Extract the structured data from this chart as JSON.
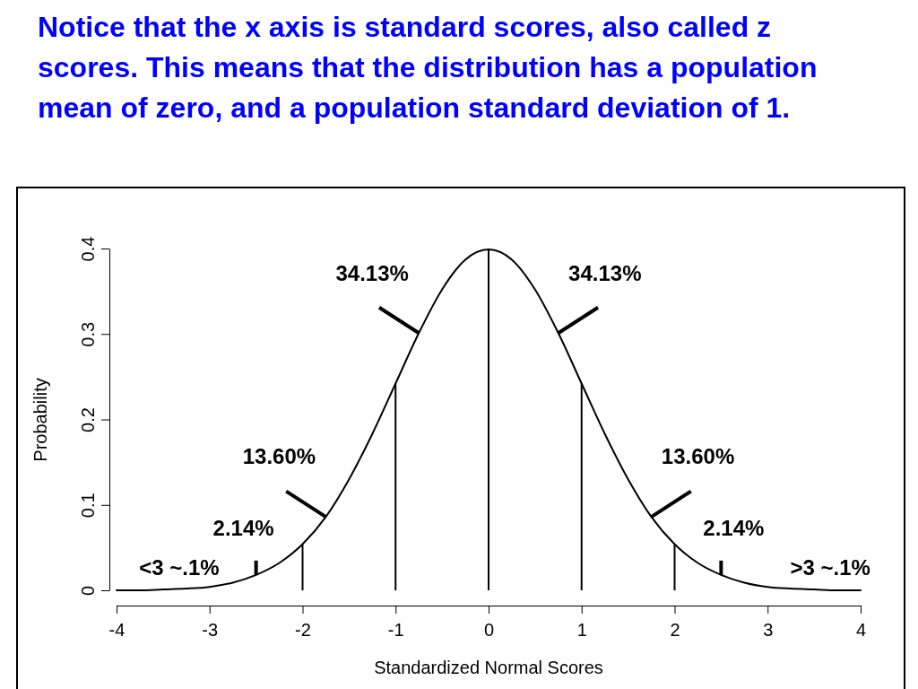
{
  "chart_data": {
    "type": "line",
    "title": "Notice that the x axis is standard scores, also called z scores. This means that the distribution has a population mean of zero, and a population standard deviation of 1.",
    "xlabel": "Standardized Normal Scores",
    "ylabel": "Probability",
    "x": [
      -4,
      -3.75,
      -3.5,
      -3.25,
      -3,
      -2.75,
      -2.5,
      -2.25,
      -2,
      -1.75,
      -1.5,
      -1.25,
      -1,
      -0.75,
      -0.5,
      -0.25,
      0,
      0.25,
      0.5,
      0.75,
      1,
      1.25,
      1.5,
      1.75,
      2,
      2.25,
      2.5,
      2.75,
      3,
      3.25,
      3.5,
      3.75,
      4
    ],
    "series": [
      {
        "color": "#000000",
        "values": [
          0,
          0,
          0.001,
          0.002,
          0.004,
          0.009,
          0.018,
          0.032,
          0.054,
          0.086,
          0.13,
          0.183,
          0.242,
          0.301,
          0.352,
          0.387,
          0.399,
          0.387,
          0.352,
          0.301,
          0.242,
          0.183,
          0.13,
          0.086,
          0.054,
          0.032,
          0.018,
          0.009,
          0.004,
          0.002,
          0.001,
          0,
          0
        ]
      }
    ],
    "xlim": [
      -4,
      4
    ],
    "ylim": [
      0,
      0.4
    ],
    "xticks": [
      -4,
      -3,
      -2,
      -1,
      0,
      1,
      2,
      3,
      4
    ],
    "yticks": [
      0,
      0.1,
      0.2,
      0.3,
      0.4
    ],
    "ref_lines": [
      {
        "axis": "x",
        "value": -2
      },
      {
        "axis": "x",
        "value": -1
      },
      {
        "axis": "x",
        "value": 0
      },
      {
        "axis": "x",
        "value": 1
      },
      {
        "axis": "x",
        "value": 2
      }
    ],
    "annotations": [
      {
        "text": "34.13%",
        "x": -0.75,
        "y": 0.301
      },
      {
        "text": "34.13%",
        "x": 0.75,
        "y": 0.301
      },
      {
        "text": "13.60%",
        "x": -1.75,
        "y": 0.086
      },
      {
        "text": "13.60%",
        "x": 1.75,
        "y": 0.086
      },
      {
        "text": "2.14%",
        "x": -2.5,
        "y": 0.018
      },
      {
        "text": "2.14%",
        "x": 2.5,
        "y": 0.018
      },
      {
        "text": "<3 ~.1%",
        "x": -3.5,
        "y": 0.001
      },
      {
        "text": ">3 ~.1%",
        "x": 3.5,
        "y": 0.001
      }
    ],
    "grid": false,
    "marker": "none",
    "line_style": "solid"
  }
}
